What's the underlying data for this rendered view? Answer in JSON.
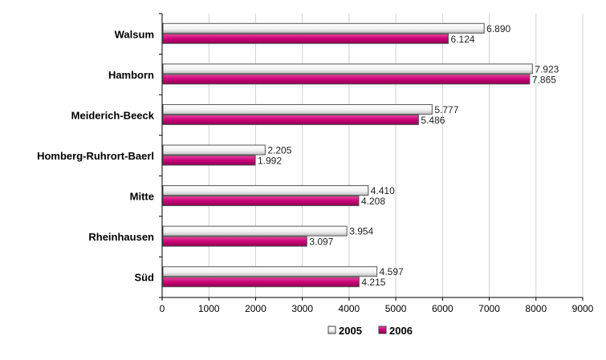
{
  "chart_data": {
    "type": "bar",
    "orientation": "horizontal",
    "categories": [
      "Walsum",
      "Hamborn",
      "Meiderich-Beeck",
      "Homberg-Ruhrort-Baerl",
      "Mitte",
      "Rheinhausen",
      "Süd"
    ],
    "series": [
      {
        "name": "2005",
        "color": "#ffffff",
        "values": [
          6890,
          7923,
          5777,
          2205,
          4410,
          3954,
          4597
        ],
        "labels": [
          "6.890",
          "7.923",
          "5.777",
          "2.205",
          "4.410",
          "3.954",
          "4.597"
        ]
      },
      {
        "name": "2006",
        "color": "#cc0077",
        "values": [
          6124,
          7865,
          5486,
          1992,
          4208,
          3097,
          4215
        ],
        "labels": [
          "6.124",
          "7.865",
          "5.486",
          "1.992",
          "4.208",
          "3.097",
          "4.215"
        ]
      }
    ],
    "xlim": [
      0,
      9000
    ],
    "xticks": [
      0,
      1000,
      2000,
      3000,
      4000,
      5000,
      6000,
      7000,
      8000,
      9000
    ],
    "xtick_labels": [
      "0",
      "1000",
      "2000",
      "3000",
      "4000",
      "5000",
      "6000",
      "7000",
      "8000",
      "9000"
    ],
    "grid": true,
    "legend_position": "bottom",
    "title": "",
    "xlabel": "",
    "ylabel": ""
  }
}
